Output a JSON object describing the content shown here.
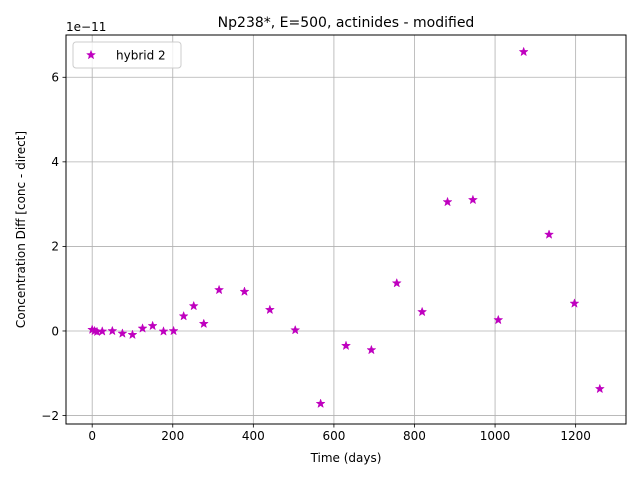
{
  "chart_data": {
    "type": "scatter",
    "title": "Np238*, E=500, actinides - modified",
    "xlabel": "Time (days)",
    "ylabel": "Concentration Diff [conc - direct]",
    "y_offset_label": "1e−11",
    "y_scale_exponent": -11,
    "xlim": [
      -65,
      1325
    ],
    "ylim": [
      -2.2,
      7.0
    ],
    "x_ticks": [
      0,
      200,
      400,
      600,
      800,
      1000,
      1200
    ],
    "x_tick_labels": [
      "0",
      "200",
      "400",
      "600",
      "800",
      "1000",
      "1200"
    ],
    "y_ticks": [
      -2,
      0,
      2,
      4,
      6
    ],
    "y_tick_labels": [
      "−2",
      "0",
      "2",
      "4",
      "6"
    ],
    "grid": true,
    "legend_position": "upper-left",
    "series": [
      {
        "name": "hybrid 2",
        "color": "#bf00bf",
        "marker": "star",
        "points": [
          {
            "x": 0,
            "y": 0.03
          },
          {
            "x": 6,
            "y": 0.0
          },
          {
            "x": 12,
            "y": -0.02
          },
          {
            "x": 25,
            "y": -0.01
          },
          {
            "x": 50,
            "y": 0.0
          },
          {
            "x": 75,
            "y": -0.06
          },
          {
            "x": 100,
            "y": -0.09
          },
          {
            "x": 125,
            "y": 0.06
          },
          {
            "x": 150,
            "y": 0.12
          },
          {
            "x": 177,
            "y": -0.01
          },
          {
            "x": 202,
            "y": 0.0
          },
          {
            "x": 227,
            "y": 0.35
          },
          {
            "x": 252,
            "y": 0.59
          },
          {
            "x": 277,
            "y": 0.17
          },
          {
            "x": 315,
            "y": 0.97
          },
          {
            "x": 378,
            "y": 0.93
          },
          {
            "x": 441,
            "y": 0.5
          },
          {
            "x": 504,
            "y": 0.02
          },
          {
            "x": 567,
            "y": -1.72
          },
          {
            "x": 630,
            "y": -0.35
          },
          {
            "x": 693,
            "y": -0.45
          },
          {
            "x": 756,
            "y": 1.13
          },
          {
            "x": 819,
            "y": 0.45
          },
          {
            "x": 882,
            "y": 3.05
          },
          {
            "x": 945,
            "y": 3.1
          },
          {
            "x": 1008,
            "y": 0.26
          },
          {
            "x": 1071,
            "y": 6.6
          },
          {
            "x": 1134,
            "y": 2.28
          },
          {
            "x": 1197,
            "y": 0.65
          },
          {
            "x": 1260,
            "y": -1.37
          }
        ]
      }
    ]
  }
}
